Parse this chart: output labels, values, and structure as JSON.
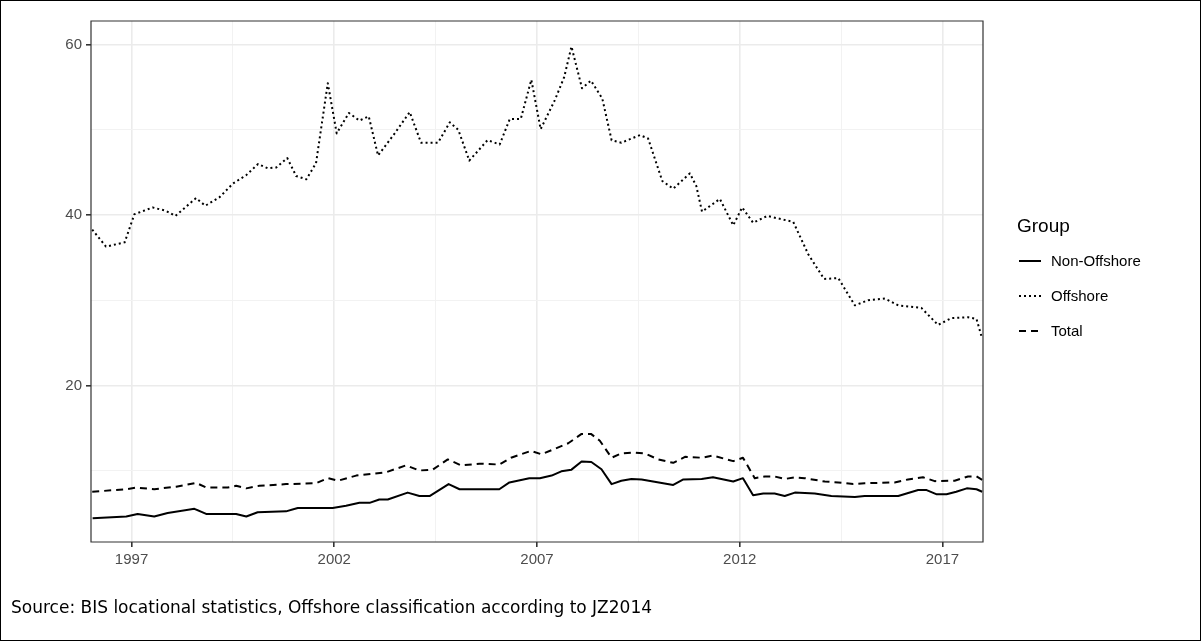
{
  "chart_data": {
    "type": "line",
    "legend_title": "Group",
    "legend": "right",
    "grid": true,
    "xlim": [
      1996,
      2018
    ],
    "xticks": [
      1997,
      {
        "value": 1999.5,
        "label": null
      },
      2002,
      {
        "value": 2004.5,
        "label": null
      },
      2007,
      {
        "value": 2009.5,
        "label": null
      },
      2012,
      {
        "value": 2014.5,
        "label": null
      },
      2017
    ],
    "ylim": [
      1.6,
      62.8
    ],
    "yticks": [
      {
        "value": 10,
        "label": null
      },
      20,
      {
        "value": 30,
        "label": null
      },
      40,
      {
        "value": 50,
        "label": null
      },
      60
    ],
    "annotations": [
      "Source: BIS locational statistics, Offshore classification according to JZ2014"
    ],
    "series": [
      {
        "name": "Non-Offshore",
        "color": "#000000",
        "line_style": "solid",
        "x": [
          1996.04,
          1996.87,
          1997.15,
          1997.56,
          1997.89,
          1998.55,
          1998.84,
          1999.58,
          1999.83,
          2000.11,
          2000.81,
          2001.1,
          2001.96,
          2002.29,
          2002.62,
          2002.87,
          2003.11,
          2003.32,
          2003.81,
          2004.1,
          2004.35,
          2004.82,
          2005.09,
          2006.07,
          2006.32,
          2006.81,
          2007.07,
          2007.36,
          2007.6,
          2007.85,
          2008.1,
          2008.34,
          2008.59,
          2008.84,
          2009.08,
          2009.33,
          2009.58,
          2010.36,
          2010.61,
          2011.06,
          2011.34,
          2011.84,
          2012.08,
          2012.33,
          2012.58,
          2012.86,
          2013.11,
          2013.36,
          2013.85,
          2014.26,
          2014.84,
          2015.08,
          2015.91,
          2016.4,
          2016.61,
          2016.86,
          2017.1,
          2017.34,
          2017.6,
          2017.84,
          2017.98
        ],
        "values": [
          4.4,
          4.6,
          4.9,
          4.6,
          5.0,
          5.5,
          4.9,
          4.9,
          4.6,
          5.1,
          5.2,
          5.6,
          5.6,
          5.85,
          6.2,
          6.2,
          6.6,
          6.6,
          7.4,
          7.0,
          7.0,
          8.4,
          7.8,
          7.8,
          8.6,
          9.1,
          9.1,
          9.4,
          9.9,
          10.1,
          11.05,
          11.0,
          10.15,
          8.4,
          8.8,
          9.0,
          8.95,
          8.3,
          8.95,
          9.0,
          9.2,
          8.7,
          9.1,
          7.1,
          7.3,
          7.3,
          7.0,
          7.4,
          7.3,
          7.0,
          6.9,
          7.0,
          7.0,
          7.7,
          7.7,
          7.2,
          7.2,
          7.5,
          7.9,
          7.8,
          7.5
        ]
      },
      {
        "name": "Offshore",
        "color": "#000000",
        "line_style": "dotted",
        "x": [
          1996.03,
          1996.37,
          1996.83,
          1997.07,
          1997.52,
          1997.85,
          1998.08,
          1998.59,
          1998.82,
          1999.17,
          1999.5,
          1999.83,
          2000.12,
          2000.36,
          2000.57,
          2000.84,
          2001.06,
          2001.31,
          2001.55,
          2001.84,
          2002.06,
          2002.36,
          2002.62,
          2002.85,
          2003.08,
          2003.49,
          2003.86,
          2004.14,
          2004.56,
          2004.85,
          2005.06,
          2005.33,
          2005.78,
          2006.08,
          2006.33,
          2006.6,
          2006.86,
          2007.09,
          2007.44,
          2007.67,
          2007.85,
          2008.11,
          2008.33,
          2008.61,
          2008.84,
          2009.08,
          2009.54,
          2009.74,
          2010.09,
          2010.36,
          2010.77,
          2010.93,
          2011.07,
          2011.51,
          2011.84,
          2012.06,
          2012.33,
          2012.68,
          2013.32,
          2013.69,
          2014.08,
          2014.43,
          2014.84,
          2015.17,
          2015.58,
          2015.91,
          2016.48,
          2016.89,
          2017.22,
          2017.63,
          2017.84,
          2017.96
        ],
        "values": [
          38.3,
          36.3,
          36.8,
          40.1,
          40.9,
          40.5,
          39.9,
          42.0,
          41.1,
          42.1,
          43.7,
          44.7,
          46.0,
          45.5,
          45.6,
          46.7,
          44.6,
          44.2,
          46.1,
          55.5,
          49.6,
          52.0,
          51.1,
          51.6,
          47.0,
          49.6,
          52.1,
          48.5,
          48.5,
          50.9,
          50.0,
          46.4,
          48.8,
          48.3,
          51.3,
          51.3,
          55.9,
          50.1,
          53.5,
          56.2,
          59.8,
          54.9,
          55.8,
          53.7,
          48.8,
          48.5,
          49.4,
          49.0,
          44.0,
          43.1,
          44.9,
          43.4,
          40.4,
          41.9,
          38.8,
          40.9,
          39.1,
          39.9,
          39.2,
          35.4,
          32.5,
          32.6,
          29.4,
          30.0,
          30.2,
          29.4,
          29.1,
          27.1,
          27.9,
          28.0,
          27.8,
          25.8
        ]
      },
      {
        "name": "Total",
        "color": "#000000",
        "line_style": "dashed",
        "x": [
          1996.03,
          1996.87,
          1997.11,
          1997.56,
          1998.1,
          1998.59,
          1998.84,
          1999.37,
          1999.58,
          1999.83,
          2000.15,
          2000.81,
          2001.55,
          2001.84,
          2002.09,
          2002.54,
          2003.28,
          2003.77,
          2004.1,
          2004.43,
          2004.8,
          2005.13,
          2005.58,
          2006.07,
          2006.36,
          2006.85,
          2007.11,
          2007.77,
          2008.1,
          2008.33,
          2008.55,
          2008.84,
          2009.08,
          2009.41,
          2009.66,
          2009.99,
          2010.36,
          2010.65,
          2011.06,
          2011.34,
          2011.84,
          2012.08,
          2012.37,
          2012.62,
          2012.86,
          2013.11,
          2013.36,
          2013.6,
          2014.1,
          2014.43,
          2014.8,
          2015.08,
          2015.82,
          2016.15,
          2016.52,
          2016.81,
          2017.3,
          2017.63,
          2017.84,
          2017.98
        ],
        "values": [
          7.5,
          7.8,
          8.0,
          7.8,
          8.1,
          8.55,
          8.0,
          8.0,
          8.2,
          7.9,
          8.2,
          8.4,
          8.5,
          9.1,
          8.8,
          9.4,
          9.8,
          10.6,
          10.0,
          10.1,
          11.3,
          10.6,
          10.8,
          10.7,
          11.5,
          12.3,
          11.9,
          13.2,
          14.3,
          14.3,
          13.5,
          11.5,
          12.0,
          12.1,
          12.0,
          11.3,
          10.9,
          11.6,
          11.5,
          11.75,
          11.1,
          11.5,
          9.1,
          9.3,
          9.3,
          9.0,
          9.2,
          9.1,
          8.7,
          8.6,
          8.4,
          8.5,
          8.6,
          8.95,
          9.2,
          8.75,
          8.8,
          9.3,
          9.3,
          8.9
        ]
      }
    ]
  }
}
